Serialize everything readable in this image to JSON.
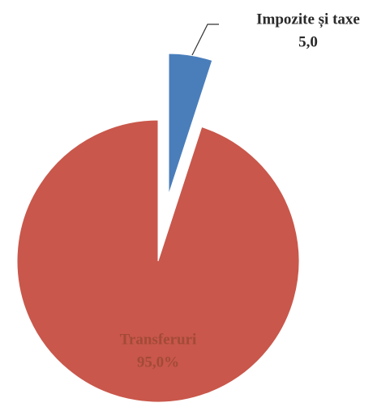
{
  "chart_data": {
    "type": "pie",
    "categories": [
      "Impozite și taxe",
      "Transferuri"
    ],
    "values": [
      5.0,
      95.0
    ],
    "value_labels": [
      "5,0",
      "95,0%"
    ],
    "colors": [
      "#4a7ebb",
      "#c9574b"
    ]
  }
}
